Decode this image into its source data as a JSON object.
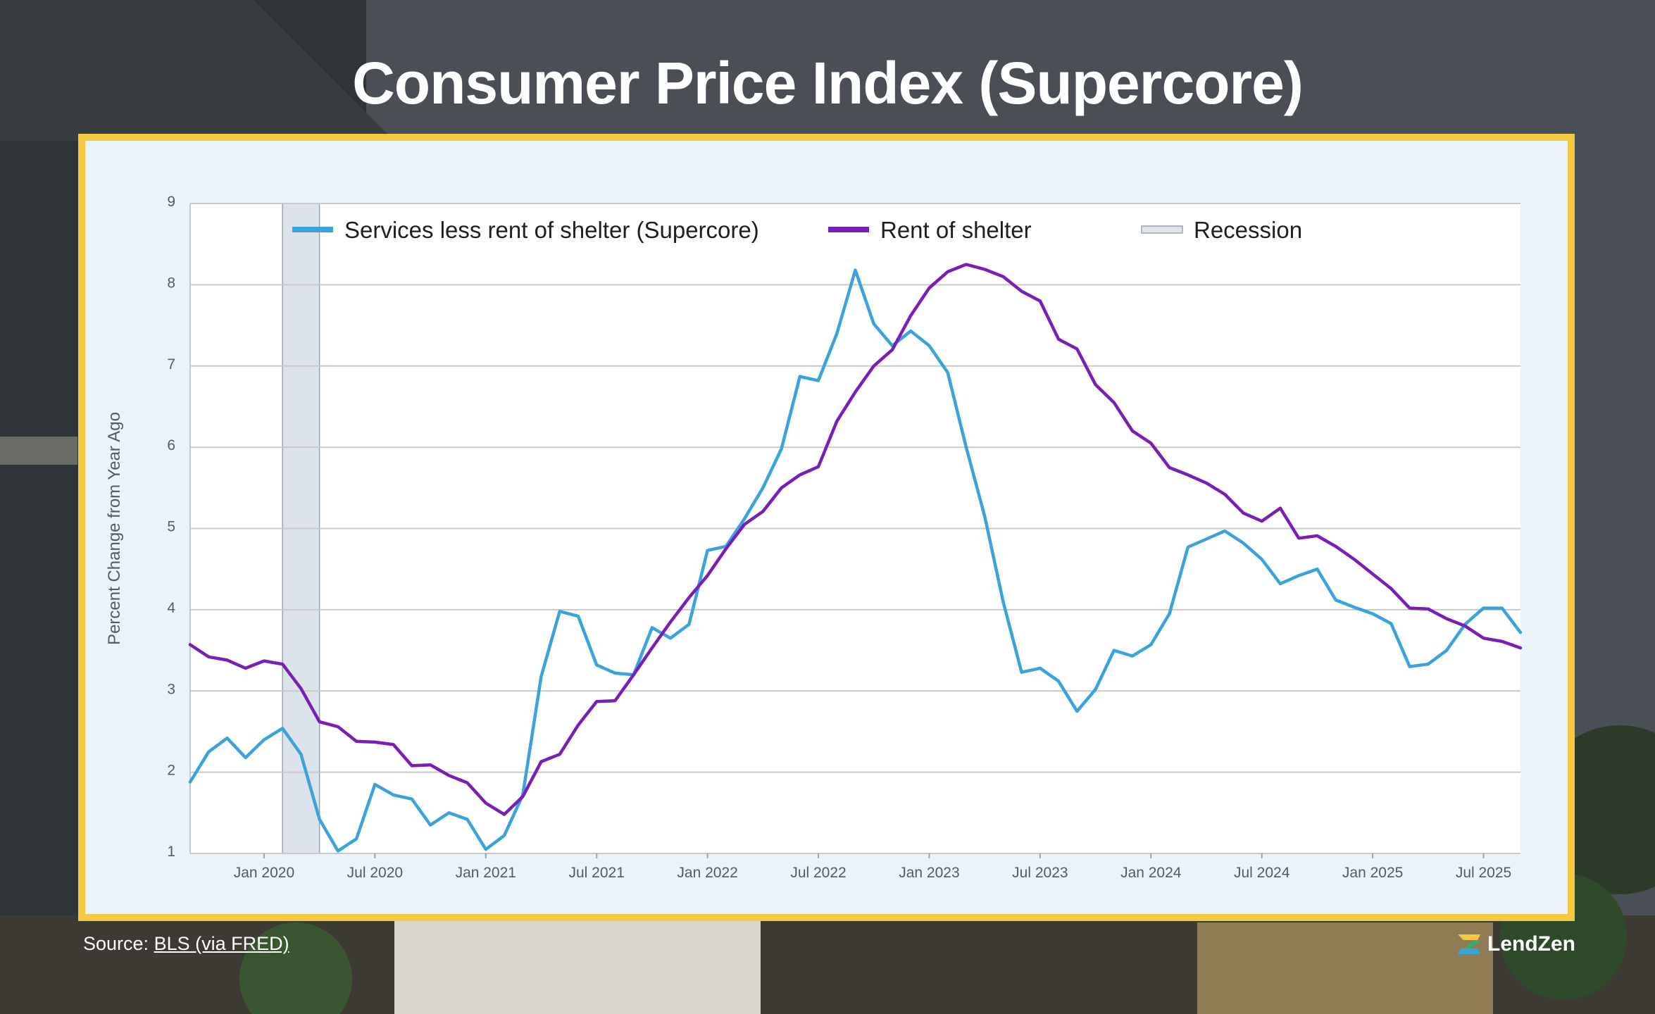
{
  "title": "Consumer Price Index (Supercore)",
  "source": {
    "prefix": "Source: ",
    "link_text": "BLS (via FRED)"
  },
  "brand": {
    "name": "LendZen",
    "icon": "lendzen-logo-icon"
  },
  "colors": {
    "frame": "#f5c842",
    "supercore": "#3aa3dc",
    "shelter": "#7a1fb5",
    "recession": "#dce3ea"
  },
  "chart_data": {
    "type": "line",
    "ylabel": "Percent Change from Year Ago",
    "xlabel": "",
    "ylim": [
      1,
      9
    ],
    "y_ticks": [
      "1",
      "2",
      "3",
      "4",
      "5",
      "6",
      "7",
      "8",
      "9"
    ],
    "x_range": [
      "2019-09",
      "2025-09"
    ],
    "x_ticks": [
      {
        "date": "2020-01",
        "label": "Jan 2020"
      },
      {
        "date": "2020-07",
        "label": "Jul 2020"
      },
      {
        "date": "2021-01",
        "label": "Jan 2021"
      },
      {
        "date": "2021-07",
        "label": "Jul 2021"
      },
      {
        "date": "2022-01",
        "label": "Jan 2022"
      },
      {
        "date": "2022-07",
        "label": "Jul 2022"
      },
      {
        "date": "2023-01",
        "label": "Jan 2023"
      },
      {
        "date": "2023-07",
        "label": "Jul 2023"
      },
      {
        "date": "2024-01",
        "label": "Jan 2024"
      },
      {
        "date": "2024-07",
        "label": "Jul 2024"
      },
      {
        "date": "2025-01",
        "label": "Jan 2025"
      },
      {
        "date": "2025-07",
        "label": "Jul 2025"
      }
    ],
    "grid": true,
    "legend_position": "top",
    "recession": {
      "label": "Recession",
      "start": "2020-02",
      "end": "2020-04"
    },
    "series": [
      {
        "name": "Services less rent of shelter (Supercore)",
        "x": [
          "2019-09",
          "2019-10",
          "2019-11",
          "2019-12",
          "2020-01",
          "2020-02",
          "2020-03",
          "2020-04",
          "2020-05",
          "2020-06",
          "2020-07",
          "2020-08",
          "2020-09",
          "2020-10",
          "2020-11",
          "2020-12",
          "2021-01",
          "2021-02",
          "2021-03",
          "2021-04",
          "2021-05",
          "2021-06",
          "2021-07",
          "2021-08",
          "2021-09",
          "2021-10",
          "2021-11",
          "2021-12",
          "2022-01",
          "2022-02",
          "2022-03",
          "2022-04",
          "2022-05",
          "2022-06",
          "2022-07",
          "2022-08",
          "2022-09",
          "2022-10",
          "2022-11",
          "2022-12",
          "2023-01",
          "2023-02",
          "2023-03",
          "2023-04",
          "2023-05",
          "2023-06",
          "2023-07",
          "2023-08",
          "2023-09",
          "2023-10",
          "2023-11",
          "2023-12",
          "2024-01",
          "2024-02",
          "2024-03",
          "2024-04",
          "2024-05",
          "2024-06",
          "2024-07",
          "2024-08",
          "2024-09",
          "2024-10",
          "2024-11",
          "2024-12",
          "2025-01",
          "2025-02",
          "2025-03",
          "2025-04",
          "2025-05",
          "2025-06",
          "2025-07",
          "2025-08",
          "2025-09"
        ],
        "values": [
          1.88,
          2.25,
          2.42,
          2.18,
          2.4,
          2.54,
          2.22,
          1.42,
          1.03,
          1.18,
          1.85,
          1.72,
          1.67,
          1.35,
          1.5,
          1.42,
          1.05,
          1.22,
          1.72,
          3.18,
          3.98,
          3.92,
          3.32,
          3.22,
          3.2,
          3.78,
          3.65,
          3.82,
          4.73,
          4.78,
          5.12,
          5.5,
          5.98,
          6.87,
          6.82,
          7.4,
          8.18,
          7.52,
          7.25,
          7.43,
          7.25,
          6.92,
          6.0,
          5.15,
          4.1,
          3.23,
          3.28,
          3.12,
          2.75,
          3.02,
          3.5,
          3.43,
          3.57,
          3.95,
          4.77,
          4.87,
          4.97,
          4.82,
          4.62,
          4.32,
          4.42,
          4.5,
          4.12,
          4.03,
          3.95,
          3.83,
          3.3,
          3.33,
          3.5,
          3.82,
          4.02,
          4.02,
          3.72
        ]
      },
      {
        "name": "Rent of shelter",
        "x": [
          "2019-09",
          "2019-10",
          "2019-11",
          "2019-12",
          "2020-01",
          "2020-02",
          "2020-03",
          "2020-04",
          "2020-05",
          "2020-06",
          "2020-07",
          "2020-08",
          "2020-09",
          "2020-10",
          "2020-11",
          "2020-12",
          "2021-01",
          "2021-02",
          "2021-03",
          "2021-04",
          "2021-05",
          "2021-06",
          "2021-07",
          "2021-08",
          "2021-09",
          "2021-10",
          "2021-11",
          "2021-12",
          "2022-01",
          "2022-02",
          "2022-03",
          "2022-04",
          "2022-05",
          "2022-06",
          "2022-07",
          "2022-08",
          "2022-09",
          "2022-10",
          "2022-11",
          "2022-12",
          "2023-01",
          "2023-02",
          "2023-03",
          "2023-04",
          "2023-05",
          "2023-06",
          "2023-07",
          "2023-08",
          "2023-09",
          "2023-10",
          "2023-11",
          "2023-12",
          "2024-01",
          "2024-02",
          "2024-03",
          "2024-04",
          "2024-05",
          "2024-06",
          "2024-07",
          "2024-08",
          "2024-09",
          "2024-10",
          "2024-11",
          "2024-12",
          "2025-01",
          "2025-02",
          "2025-03",
          "2025-04",
          "2025-05",
          "2025-06",
          "2025-07",
          "2025-08",
          "2025-09"
        ],
        "values": [
          3.57,
          3.42,
          3.38,
          3.28,
          3.37,
          3.33,
          3.03,
          2.62,
          2.56,
          2.38,
          2.37,
          2.34,
          2.08,
          2.09,
          1.96,
          1.87,
          1.62,
          1.48,
          1.7,
          2.13,
          2.22,
          2.58,
          2.87,
          2.88,
          3.2,
          3.53,
          3.85,
          4.15,
          4.42,
          4.75,
          5.05,
          5.21,
          5.5,
          5.66,
          5.76,
          6.32,
          6.68,
          7.0,
          7.2,
          7.62,
          7.96,
          8.16,
          8.25,
          8.19,
          8.1,
          7.92,
          7.8,
          7.33,
          7.21,
          6.77,
          6.55,
          6.2,
          6.05,
          5.75,
          5.66,
          5.56,
          5.42,
          5.19,
          5.09,
          5.25,
          4.88,
          4.91,
          4.78,
          4.62,
          4.44,
          4.26,
          4.02,
          4.01,
          3.89,
          3.8,
          3.65,
          3.61,
          3.53
        ]
      }
    ]
  }
}
